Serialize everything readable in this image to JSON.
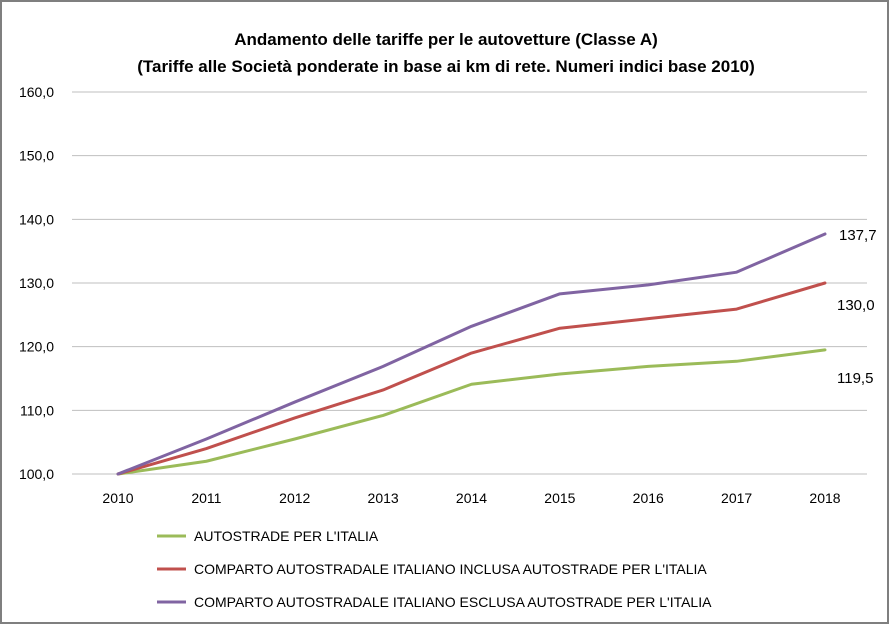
{
  "chart_data": {
    "type": "line",
    "title": "Andamento delle tariffe per le autovetture (Classe A)",
    "subtitle": "(Tariffe alle Società ponderate in base ai km di rete. Numeri indici base 2010)",
    "xlabel": "",
    "ylabel": "",
    "categories": [
      "2010",
      "2011",
      "2012",
      "2013",
      "2014",
      "2015",
      "2016",
      "2017",
      "2018"
    ],
    "ylim": [
      100,
      160
    ],
    "yticks": [
      "100,0",
      "110,0",
      "120,0",
      "130,0",
      "140,0",
      "150,0",
      "160,0"
    ],
    "grid": true,
    "legend_position": "bottom",
    "series": [
      {
        "name": "AUTOSTRADE PER L'ITALIA",
        "color": "#9bbb59",
        "values": [
          100.0,
          102.0,
          105.5,
          109.2,
          114.1,
          115.7,
          116.9,
          117.7,
          119.5
        ],
        "end_label": "119,5"
      },
      {
        "name": "COMPARTO AUTOSTRADALE ITALIANO INCLUSA AUTOSTRADE PER L'ITALIA",
        "color": "#c0504d",
        "values": [
          100.0,
          104.0,
          108.8,
          113.2,
          119.0,
          122.9,
          124.4,
          125.9,
          130.0
        ],
        "end_label": "130,0"
      },
      {
        "name": "COMPARTO AUTOSTRADALE ITALIANO ESCLUSA AUTOSTRADE PER L'ITALIA",
        "color": "#8064a2",
        "values": [
          100.0,
          105.5,
          111.3,
          116.9,
          123.2,
          128.3,
          129.7,
          131.7,
          137.7
        ],
        "end_label": "137,7"
      }
    ]
  }
}
